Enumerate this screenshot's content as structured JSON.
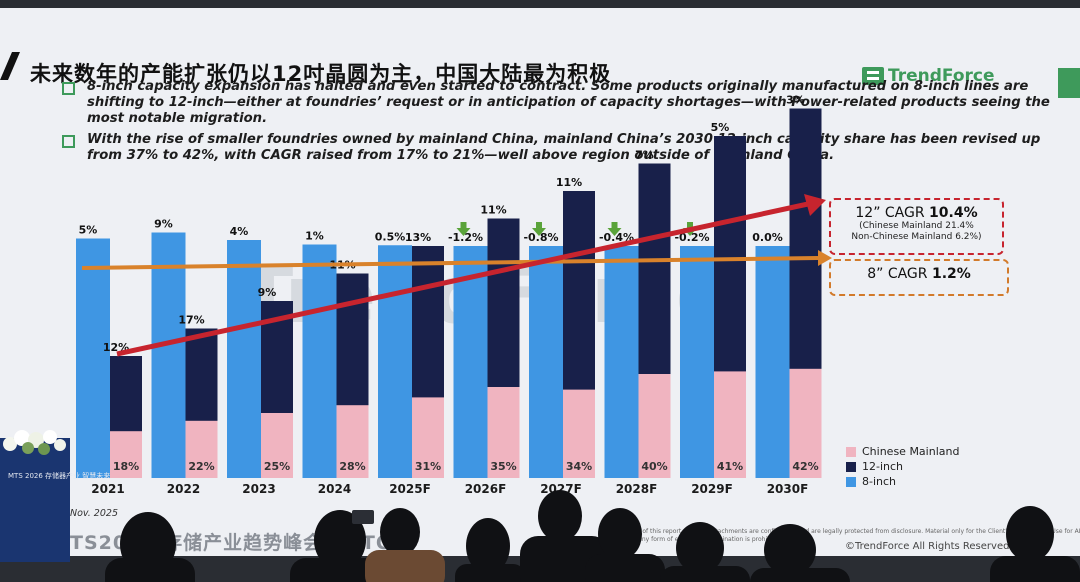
{
  "slide": {
    "title": "未来数年的产能扩张仍以12吋晶圆为主，中国大陆最为积极",
    "logo_text": "TrendForce",
    "bullets": [
      "8-inch capacity expansion has halted and even started to contract. Some products originally manufactured on 8-inch lines are shifting to 12-inch—either at foundries’ request or in anticipation of capacity shortages—with Power-related products seeing the most notable migration.",
      "With the rise of smaller foundries owned by mainland China, mainland China’s 2030 12-inch capacity share has been revised up from 37% to 42%, with CAGR raised from 17% to 21%—well above region outside of mainland China."
    ],
    "cagr_12_main": "12” CAGR ",
    "cagr_12_value": "10.4%",
    "cagr_12_sub1": "(Chinese Mainland 21.4%",
    "cagr_12_sub2": "Non-Chinese Mainland 6.2%)",
    "cagr_8_main": "8” CAGR ",
    "cagr_8_value": "1.2%",
    "date": "Nov. 2025",
    "footer_cn": "TS2026 存储产业趋势峰会 USTON",
    "disclaimer": "All contents of this report and any attachments are confidential and are legally protected from disclosure. Material only for the Client's internal use. Use for AI model training or any form of external dissemination is prohibited.",
    "copyright": "©TrendForce All Rights Reserved",
    "podium_text": "MTS 2026 存储器产业 智慧未来"
  },
  "colors": {
    "eight_inch": "#3f96e3",
    "twelve_inch": "#18204a",
    "chinese_mainland": "#f0b4c0",
    "growth_line": "#c7242e",
    "eight_line": "#d9822b",
    "down_arrow": "#5aa33a",
    "brand_green": "#3e9a5b"
  },
  "chart_data": {
    "type": "bar",
    "categories": [
      "2021",
      "2022",
      "2023",
      "2024",
      "2025F",
      "2026F",
      "2027F",
      "2028F",
      "2029F",
      "2030F"
    ],
    "series": [
      {
        "name": "Chinese Mainland",
        "values": [
          18,
          22,
          25,
          28,
          31,
          35,
          34,
          40,
          41,
          42
        ]
      },
      {
        "name": "12-inch",
        "values": [
          12,
          17,
          9,
          11,
          13,
          11,
          11,
          7,
          5,
          3
        ]
      },
      {
        "name": "8-inch",
        "values": [
          5,
          9,
          4,
          1,
          0.5,
          -1.2,
          -0.8,
          -0.4,
          -0.2,
          0.0
        ]
      }
    ],
    "labels": {
      "chinese_mainland": [
        "18%",
        "22%",
        "25%",
        "28%",
        "31%",
        "35%",
        "34%",
        "40%",
        "41%",
        "42%"
      ],
      "twelve_inch": [
        "12%",
        "17%",
        "9%",
        "11%",
        "13%",
        "11%",
        "11%",
        "7%",
        "5%",
        "3%"
      ],
      "eight_inch": [
        "5%",
        "9%",
        "4%",
        "1%",
        "0.5%",
        "-1.2%",
        "-0.8%",
        "-0.4%",
        "-0.2%",
        "0.0%"
      ]
    },
    "decline_markers": [
      "2026F",
      "2027F",
      "2028F",
      "2029F"
    ],
    "legend": [
      "Chinese Mainland",
      "12-inch",
      "8-inch"
    ],
    "legend_position": "bottom-right",
    "grid": false
  }
}
